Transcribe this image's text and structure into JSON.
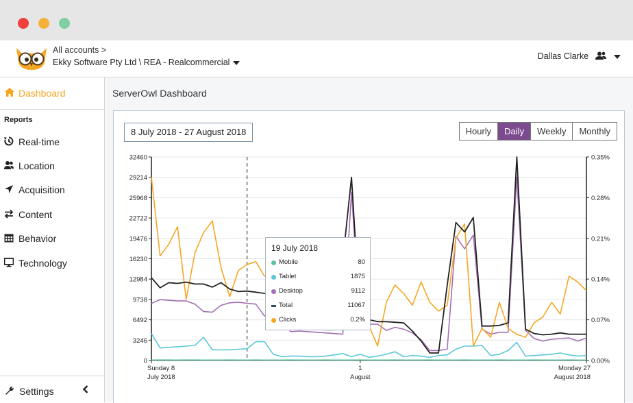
{
  "window": {
    "controls": [
      "close",
      "minimize",
      "maximize"
    ]
  },
  "header": {
    "accounts_link": "All accounts >",
    "account_name": "Ekky Software Pty Ltd \\ REA - Realcommercial",
    "user_name": "Dallas Clarke"
  },
  "sidebar": {
    "dashboard": "Dashboard",
    "reports_heading": "Reports",
    "items": [
      {
        "label": "Real-time",
        "icon": "clock-icon"
      },
      {
        "label": "Location",
        "icon": "users-icon"
      },
      {
        "label": "Acquisition",
        "icon": "location-arrow-icon"
      },
      {
        "label": "Content",
        "icon": "exchange-icon"
      },
      {
        "label": "Behavior",
        "icon": "calendar-icon"
      },
      {
        "label": "Technology",
        "icon": "desktop-icon"
      }
    ],
    "settings": "Settings"
  },
  "main": {
    "title": "ServerOwl Dashboard",
    "date_range": "8 July 2018 - 27 August 2018",
    "granularity": [
      "Hourly",
      "Daily",
      "Weekly",
      "Monthly"
    ],
    "granularity_selected": "Daily"
  },
  "colors": {
    "accent": "#f5a623",
    "selected": "#7b4a8f",
    "mobile": "#5fc3a0",
    "tablet": "#5ac8d8",
    "desktop": "#a36fb3",
    "total": "#222222",
    "clicks": "#f5a623"
  },
  "tooltip": {
    "title": "19 July 2018",
    "rows": [
      {
        "name": "Mobile",
        "value": "80"
      },
      {
        "name": "Tablet",
        "value": "1875"
      },
      {
        "name": "Desktop",
        "value": "9112"
      },
      {
        "name": "Total",
        "value": "11067"
      },
      {
        "name": "Clicks",
        "value": "0.2%"
      }
    ]
  },
  "chart_data": {
    "type": "line",
    "ylim": [
      0,
      32460
    ],
    "y2lim": [
      0,
      0.35
    ],
    "y_ticks": [
      "32460",
      "29214",
      "25968",
      "22722",
      "19476",
      "16230",
      "12984",
      "9738",
      "6492",
      "3246",
      "0"
    ],
    "y2_ticks": [
      "0.35%",
      "0.28%",
      "0.21%",
      "0.14%",
      "0.07%",
      "0.00%"
    ],
    "x_ticks": [
      {
        "index": 0,
        "line1": "Sunday 8",
        "line2": "July 2018"
      },
      {
        "index": 24,
        "line1": "1",
        "line2": "August"
      },
      {
        "index": 50,
        "line1": "Monday 27",
        "line2": "August 2018"
      }
    ],
    "highlight_index": 11,
    "series": [
      {
        "name": "Total",
        "axis": "left",
        "values": [
          13200,
          11600,
          12400,
          12300,
          12500,
          12200,
          12200,
          11700,
          12400,
          11400,
          11000,
          11067,
          10900,
          10700,
          10600,
          8500,
          5300,
          5300,
          5100,
          5000,
          4900,
          4900,
          16000,
          29214,
          6500,
          6500,
          6200,
          6200,
          6100,
          6000,
          4700,
          3100,
          1200,
          1200,
          12000,
          22000,
          20500,
          22800,
          5500,
          5500,
          5600,
          6000,
          32460,
          5000,
          4300,
          4100,
          4200,
          4400,
          4200,
          4200,
          4200
        ]
      },
      {
        "name": "Desktop",
        "axis": "left",
        "values": [
          9100,
          9700,
          9600,
          9500,
          9500,
          9000,
          7800,
          7700,
          8800,
          9200,
          9300,
          9112,
          9000,
          7100,
          7300,
          7000,
          4600,
          4700,
          4600,
          4500,
          4400,
          4300,
          4200,
          26800,
          6000,
          5800,
          5800,
          4800,
          5300,
          5000,
          4400,
          3300,
          1600,
          1600,
          1800,
          19800,
          17800,
          20000,
          5000,
          4200,
          4500,
          4500,
          29214,
          4800,
          3500,
          3100,
          3400,
          3500,
          3600,
          3100,
          3600
        ]
      },
      {
        "name": "Tablet",
        "axis": "left",
        "values": [
          4300,
          2000,
          2100,
          2200,
          2300,
          2400,
          3700,
          1700,
          1700,
          1700,
          1800,
          1875,
          3000,
          3000,
          1000,
          600,
          700,
          700,
          600,
          600,
          700,
          900,
          1100,
          600,
          1000,
          500,
          700,
          1000,
          1400,
          600,
          800,
          700,
          500,
          800,
          900,
          1800,
          2300,
          2300,
          2400,
          800,
          1000,
          1600,
          2900,
          700,
          800,
          900,
          1000,
          1200,
          900,
          700,
          800
        ]
      },
      {
        "name": "Mobile",
        "axis": "left",
        "values": [
          80,
          90,
          85,
          80,
          85,
          90,
          80,
          75,
          80,
          85,
          80,
          80,
          85,
          80,
          75,
          80,
          85,
          80,
          75,
          80,
          85,
          80,
          75,
          80,
          85,
          80,
          75,
          80,
          85,
          80,
          75,
          80,
          85,
          80,
          75,
          80,
          85,
          80,
          75,
          80,
          85,
          80,
          75,
          80,
          85,
          80,
          75,
          80,
          85,
          80,
          75
        ]
      },
      {
        "name": "Clicks",
        "axis": "right",
        "values": [
          0.315,
          0.18,
          0.2,
          0.23,
          0.105,
          0.185,
          0.22,
          0.24,
          0.16,
          0.11,
          0.155,
          0.165,
          0.17,
          0.145,
          0.15,
          0.06,
          0.14,
          0.125,
          0.12,
          0.095,
          0.075,
          0.09,
          0.09,
          0.065,
          0.07,
          0.06,
          0.025,
          0.1,
          0.13,
          0.115,
          0.095,
          0.135,
          0.1,
          0.085,
          0.095,
          0.21,
          0.235,
          0.025,
          0.055,
          0.04,
          0.1,
          0.055,
          0.045,
          0.04,
          0.065,
          0.075,
          0.1,
          0.08,
          0.145,
          0.135,
          0.12
        ]
      }
    ]
  }
}
